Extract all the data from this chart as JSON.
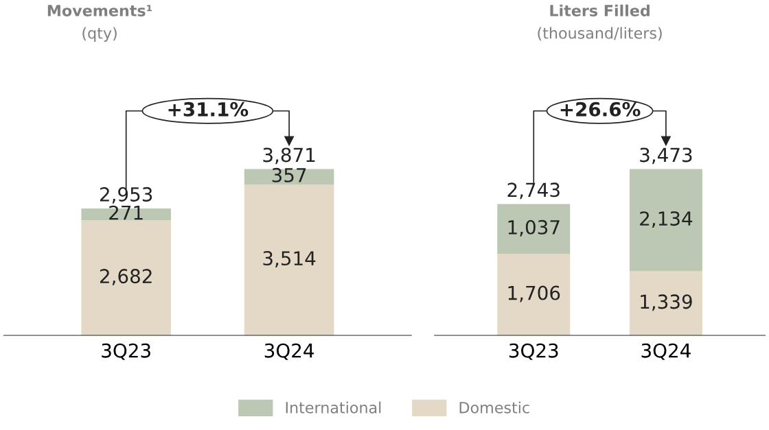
{
  "chart_data": [
    {
      "type": "bar",
      "title": "Movements¹",
      "subtitle": "(qty)",
      "categories": [
        "3Q23",
        "3Q24"
      ],
      "stacked": true,
      "totals": [
        "2,953",
        "3,871"
      ],
      "annotations": [
        "+31.1%"
      ],
      "legend": "bottom",
      "grid": false,
      "series": [
        {
          "name": "Domestic",
          "color": "#e3d9c6",
          "values": [
            2682,
            3514
          ],
          "value_labels": [
            "2,682",
            "3,514"
          ]
        },
        {
          "name": "International",
          "color": "#bcc8b4",
          "values": [
            271,
            357
          ],
          "value_labels": [
            "271",
            "357"
          ]
        }
      ]
    },
    {
      "type": "bar",
      "title": "Liters Filled",
      "subtitle": "(thousand/liters)",
      "categories": [
        "3Q23",
        "3Q24"
      ],
      "stacked": true,
      "totals": [
        "2,743",
        "3,473"
      ],
      "annotations": [
        "+26.6%"
      ],
      "grid": false,
      "series": [
        {
          "color": "#e3d9c6",
          "values": [
            1706,
            1339
          ],
          "value_labels": [
            "1,706",
            "1,339"
          ]
        },
        {
          "color": "#bcc8b4",
          "values": [
            1037,
            2134
          ],
          "value_labels": [
            "1,037",
            "2,134"
          ]
        }
      ]
    }
  ]
}
